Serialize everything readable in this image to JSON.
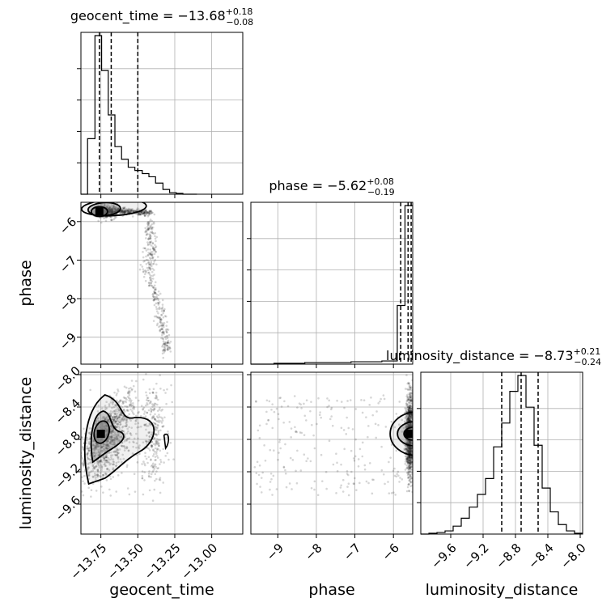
{
  "chart_data": {
    "type": "corner",
    "colors": {
      "ink": "#000000",
      "grid": "#b0b0b0",
      "contour_fill": "#808080",
      "scatter": "#000000"
    },
    "parameters": [
      {
        "name": "geocent_time",
        "label": "geocent_time",
        "range": [
          -13.885,
          -12.79
        ],
        "ticks": [
          -13.75,
          -13.5,
          -13.25,
          -13.0
        ],
        "tick_labels": [
          "−13.75",
          "−13.50",
          "−13.25",
          "−13.00"
        ]
      },
      {
        "name": "phase",
        "label": "phase",
        "range": [
          -9.7,
          -5.5
        ],
        "ticks": [
          -9,
          -8,
          -7,
          -6
        ],
        "tick_labels": [
          "−9",
          "−8",
          "−7",
          "−6"
        ]
      },
      {
        "name": "luminosity_distance",
        "label": "luminosity_distance",
        "range": [
          -9.97,
          -7.97
        ],
        "ticks": [
          -9.6,
          -9.2,
          -8.8,
          -8.4,
          -8.0
        ],
        "tick_labels": [
          "−9.6",
          "−9.2",
          "−8.8",
          "−8.4",
          "−8.0"
        ]
      }
    ],
    "titles": [
      {
        "name": "geocent_time",
        "median": "−13.68",
        "plus": "+0.18",
        "minus": "−0.08"
      },
      {
        "name": "phase",
        "median": "−5.62",
        "plus": "+0.08",
        "minus": "−0.19"
      },
      {
        "name": "luminosity_distance",
        "median": "−8.73",
        "plus": "+0.21",
        "minus": "−0.24"
      }
    ],
    "histograms": [
      {
        "param": "geocent_time",
        "bin_edges": [
          -13.885,
          -13.84,
          -13.79,
          -13.745,
          -13.7,
          -13.655,
          -13.61,
          -13.565,
          -13.52,
          -13.47,
          -13.425,
          -13.38,
          -13.33,
          -13.285,
          -13.24,
          -13.195,
          -13.145,
          -13.1
        ],
        "counts": [
          0.0,
          0.35,
          1.0,
          0.78,
          0.5,
          0.3,
          0.22,
          0.17,
          0.15,
          0.13,
          0.11,
          0.07,
          0.03,
          0.01,
          0.005,
          0.0,
          0.0
        ],
        "quantiles": [
          -13.76,
          -13.68,
          -13.5
        ]
      },
      {
        "param": "phase",
        "bin_edges": [
          -9.7,
          -9.5,
          -9.3,
          -9.1,
          -8.9,
          -8.7,
          -8.5,
          -8.3,
          -8.1,
          -7.9,
          -7.7,
          -7.5,
          -7.3,
          -7.1,
          -6.9,
          -6.7,
          -6.5,
          -6.3,
          -6.1,
          -5.9,
          -5.7,
          -5.5
        ],
        "counts": [
          0.0,
          0.0,
          0.0,
          0.005,
          0.005,
          0.005,
          0.005,
          0.01,
          0.01,
          0.01,
          0.01,
          0.01,
          0.01,
          0.015,
          0.015,
          0.015,
          0.015,
          0.02,
          0.02,
          0.37,
          1.0
        ],
        "quantiles": [
          -5.81,
          -5.62,
          -5.54
        ]
      },
      {
        "param": "luminosity_distance",
        "bin_edges": [
          -9.97,
          -9.87,
          -9.77,
          -9.67,
          -9.57,
          -9.47,
          -9.37,
          -9.27,
          -9.17,
          -9.07,
          -8.97,
          -8.87,
          -8.77,
          -8.67,
          -8.57,
          -8.47,
          -8.37,
          -8.27,
          -8.17,
          -8.07,
          -7.97
        ],
        "counts": [
          0.0,
          0.005,
          0.01,
          0.02,
          0.05,
          0.1,
          0.17,
          0.25,
          0.35,
          0.55,
          0.7,
          0.9,
          1.0,
          0.8,
          0.56,
          0.29,
          0.14,
          0.06,
          0.02,
          0.005
        ],
        "quantiles": [
          -8.97,
          -8.73,
          -8.52
        ]
      }
    ],
    "pairs": [
      {
        "x": "geocent_time",
        "y": "phase",
        "peak": [
          -13.76,
          -5.74
        ]
      },
      {
        "x": "geocent_time",
        "y": "luminosity_distance",
        "peak": [
          -13.75,
          -8.73
        ]
      },
      {
        "x": "phase",
        "y": "luminosity_distance",
        "peak": [
          -5.56,
          -8.73
        ]
      }
    ],
    "axis_labels": [
      "geocent_time",
      "phase",
      "luminosity_distance"
    ]
  }
}
